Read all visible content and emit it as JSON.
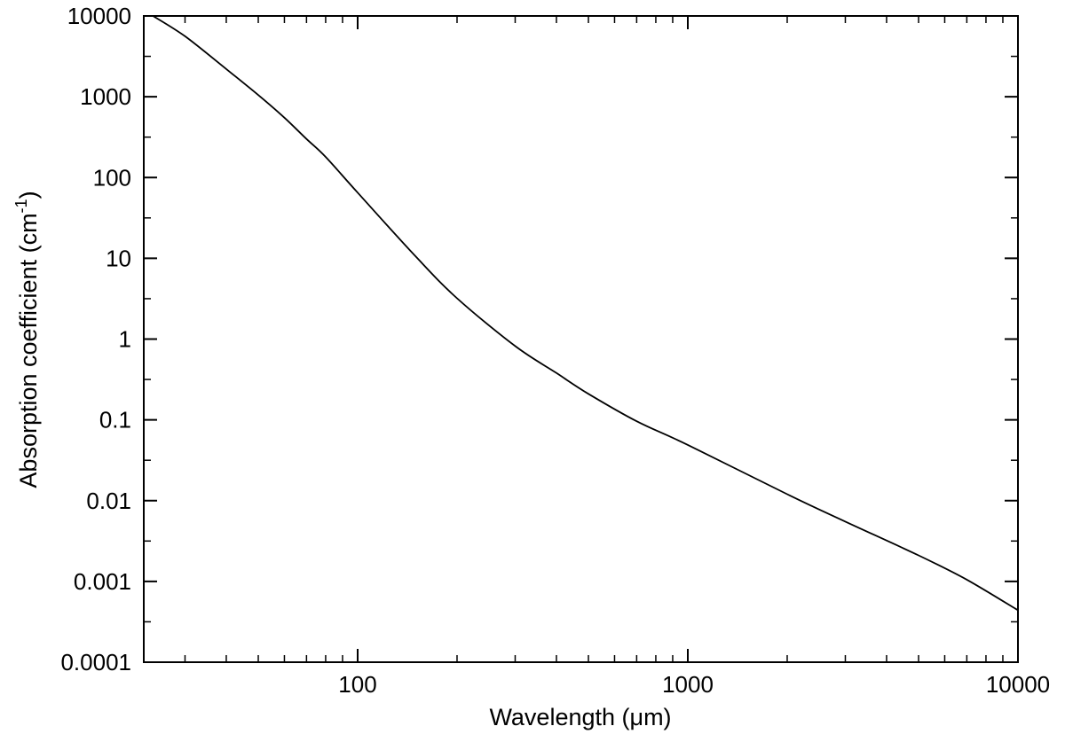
{
  "chart_data": {
    "type": "line",
    "title": "",
    "xlabel": "Wavelength (μm)",
    "ylabel_main": "Absorption coefficient (cm",
    "ylabel_sup": "-1",
    "ylabel_close": ")",
    "xscale": "log",
    "yscale": "log",
    "xlim": [
      22.5,
      10000
    ],
    "ylim": [
      0.0001,
      10000
    ],
    "grid": false,
    "legend": "none",
    "line_color": "#000000",
    "x_ticks": [
      {
        "value": 100,
        "label": "100"
      },
      {
        "value": 1000,
        "label": "1000"
      },
      {
        "value": 10000,
        "label": "10000"
      }
    ],
    "y_ticks": [
      {
        "value": 10000,
        "label": "10000"
      },
      {
        "value": 1000,
        "label": "1000"
      },
      {
        "value": 100,
        "label": "100"
      },
      {
        "value": 10,
        "label": "10"
      },
      {
        "value": 1,
        "label": "1"
      },
      {
        "value": 0.1,
        "label": "0.1"
      },
      {
        "value": 0.01,
        "label": "0.01"
      },
      {
        "value": 0.001,
        "label": "0.001"
      },
      {
        "value": 0.0001,
        "label": "0.0001"
      }
    ],
    "series": [
      {
        "x": [
          24,
          30,
          40,
          50,
          60,
          70,
          80,
          100,
          150,
          200,
          300,
          400,
          500,
          700,
          1000,
          2000,
          3000,
          5000,
          7000,
          10000
        ],
        "y": [
          10000,
          5600,
          2200,
          1050,
          550,
          300,
          180,
          65,
          10.5,
          3.2,
          0.82,
          0.38,
          0.21,
          0.096,
          0.049,
          0.012,
          0.0055,
          0.0021,
          0.00105,
          0.00044
        ]
      }
    ]
  }
}
